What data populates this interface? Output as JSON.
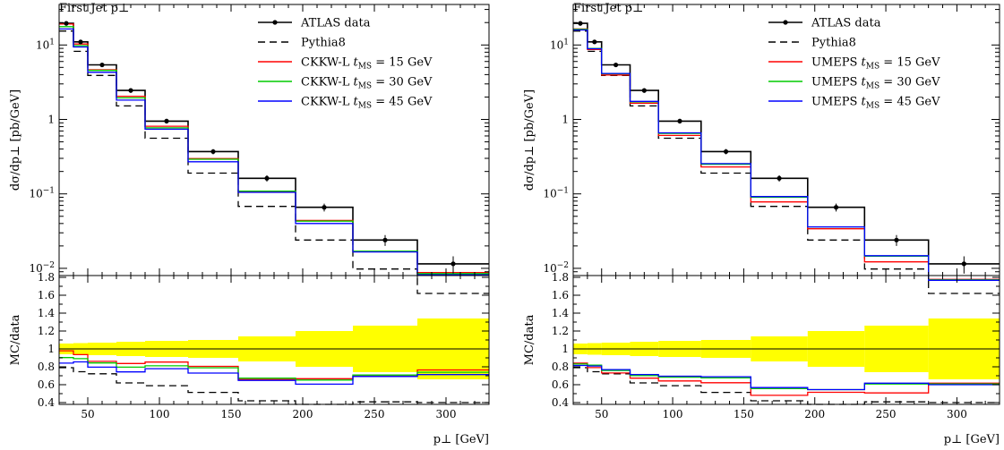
{
  "panels": [
    {
      "title": "First Jet p⊥",
      "ylabel_top": "dσ/dp⊥ [pb/GeV]",
      "ylabel_ratio": "MC/data",
      "xlabel": "p⊥ [GeV]",
      "legend": [
        "ATLAS data",
        "Pythia8",
        "CKKW-L t_MS = 15 GeV",
        "CKKW-L t_MS = 30 GeV",
        "CKKW-L t_MS = 45 GeV"
      ]
    },
    {
      "title": "First Jet p⊥",
      "ylabel_top": "dσ/dp⊥ [pb/GeV]",
      "ylabel_ratio": "MC/data",
      "xlabel": "p⊥ [GeV]",
      "legend": [
        "ATLAS data",
        "Pythia8",
        "UMEPS t_MS = 15 GeV",
        "UMEPS t_MS = 30 GeV",
        "UMEPS t_MS = 45 GeV"
      ]
    }
  ],
  "chart_data": [
    {
      "type": "line",
      "subtype": "histogram-with-ratio",
      "title": "First Jet p⊥",
      "xlabel": "p⊥ [GeV]",
      "ylabel": "dσ/dp⊥ [pb/GeV]",
      "ylabel_ratio": "MC/data",
      "xlim": [
        30,
        330
      ],
      "ylim": [
        0.008,
        35
      ],
      "yscale": "log",
      "ratio_ylim": [
        0.38,
        1.82
      ],
      "x_ticks": [
        50,
        100,
        150,
        200,
        250,
        300
      ],
      "y_ticks": [
        "10^-2",
        "10^-1",
        "1",
        "10^1"
      ],
      "ratio_ticks": [
        0.4,
        0.6,
        0.8,
        1,
        1.2,
        1.4,
        1.6,
        1.8
      ],
      "legend_position": "top-right",
      "bin_edges": [
        30,
        40,
        50,
        70,
        90,
        120,
        155,
        195,
        235,
        280,
        330
      ],
      "data": {
        "name": "ATLAS data",
        "color": "#000000",
        "x": [
          35,
          45,
          60,
          80,
          105,
          137.5,
          175,
          215,
          257.5,
          305
        ],
        "y": [
          19.5,
          11.0,
          5.4,
          2.45,
          0.95,
          0.37,
          0.162,
          0.066,
          0.024,
          0.0115
        ],
        "err": [
          1.3,
          0.7,
          0.35,
          0.17,
          0.07,
          0.03,
          0.016,
          0.008,
          0.004,
          0.003
        ]
      },
      "band": [
        0.06,
        0.065,
        0.07,
        0.08,
        0.09,
        0.1,
        0.14,
        0.2,
        0.26,
        0.34
      ],
      "series": [
        {
          "name": "Pythia8",
          "color": "#000000",
          "dash": true,
          "values": [
            15.4,
            8.2,
            3.9,
            1.52,
            0.56,
            0.19,
            0.068,
            0.024,
            0.0098,
            0.0046
          ]
        },
        {
          "name": "CKKW-L t_MS = 15 GeV",
          "color": "#ff0000",
          "values": [
            19.1,
            10.3,
            4.65,
            2.05,
            0.81,
            0.298,
            0.107,
            0.044,
            0.0167,
            0.0088
          ]
        },
        {
          "name": "CKKW-L t_MS = 30 GeV",
          "color": "#00cc00",
          "values": [
            17.6,
            9.8,
            4.55,
            1.95,
            0.77,
            0.292,
            0.109,
            0.043,
            0.017,
            0.0085
          ]
        },
        {
          "name": "CKKW-L t_MS = 45 GeV",
          "color": "#0000ff",
          "values": [
            16.4,
            9.4,
            4.3,
            1.82,
            0.74,
            0.27,
            0.105,
            0.04,
            0.0166,
            0.0082
          ]
        }
      ]
    },
    {
      "type": "line",
      "subtype": "histogram-with-ratio",
      "title": "First Jet p⊥",
      "xlabel": "p⊥ [GeV]",
      "ylabel": "dσ/dp⊥ [pb/GeV]",
      "ylabel_ratio": "MC/data",
      "xlim": [
        30,
        330
      ],
      "ylim": [
        0.008,
        35
      ],
      "yscale": "log",
      "ratio_ylim": [
        0.38,
        1.82
      ],
      "x_ticks": [
        50,
        100,
        150,
        200,
        250,
        300
      ],
      "y_ticks": [
        "10^-2",
        "10^-1",
        "1",
        "10^1"
      ],
      "ratio_ticks": [
        0.4,
        0.6,
        0.8,
        1,
        1.2,
        1.4,
        1.6,
        1.8
      ],
      "legend_position": "top-right",
      "bin_edges": [
        30,
        40,
        50,
        70,
        90,
        120,
        155,
        195,
        235,
        280,
        330
      ],
      "data": {
        "name": "ATLAS data",
        "color": "#000000",
        "x": [
          35,
          45,
          60,
          80,
          105,
          137.5,
          175,
          215,
          257.5,
          305
        ],
        "y": [
          19.5,
          11.0,
          5.4,
          2.45,
          0.95,
          0.37,
          0.162,
          0.066,
          0.024,
          0.0115
        ],
        "err": [
          1.3,
          0.7,
          0.35,
          0.17,
          0.07,
          0.03,
          0.016,
          0.008,
          0.004,
          0.003
        ]
      },
      "band": [
        0.06,
        0.065,
        0.07,
        0.08,
        0.09,
        0.1,
        0.14,
        0.2,
        0.26,
        0.34
      ],
      "series": [
        {
          "name": "Pythia8",
          "color": "#000000",
          "dash": true,
          "values": [
            15.4,
            8.2,
            3.9,
            1.52,
            0.56,
            0.19,
            0.068,
            0.024,
            0.0098,
            0.0046
          ]
        },
        {
          "name": "UMEPS t_MS = 15 GeV",
          "color": "#ff0000",
          "values": [
            16.4,
            8.7,
            3.95,
            1.65,
            0.61,
            0.23,
            0.078,
            0.034,
            0.0122,
            0.0071
          ]
        },
        {
          "name": "UMEPS t_MS = 30 GeV",
          "color": "#00cc00",
          "values": [
            16.2,
            9.0,
            4.1,
            1.72,
            0.65,
            0.25,
            0.09,
            0.036,
            0.0146,
            0.007
          ]
        },
        {
          "name": "UMEPS t_MS = 45 GeV",
          "color": "#0000ff",
          "values": [
            15.9,
            8.9,
            4.15,
            1.75,
            0.66,
            0.255,
            0.092,
            0.036,
            0.0148,
            0.0069
          ]
        }
      ]
    }
  ]
}
